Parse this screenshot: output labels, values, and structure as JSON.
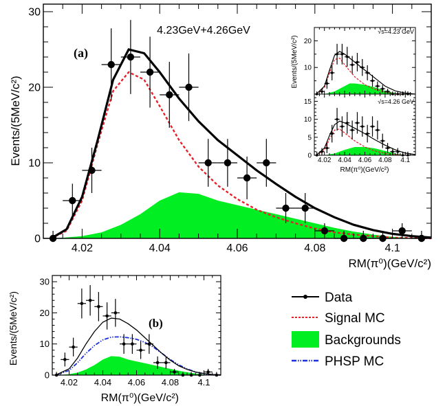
{
  "colors": {
    "data": "#000000",
    "fit": "#000000",
    "signal": "#e8202a",
    "background": "#00ee22",
    "phsp": "#1a2ed8"
  },
  "chart_data": [
    {
      "type": "scatter",
      "panel_label": "(a)",
      "title": "4.23GeV+4.26GeV",
      "xlabel": "RM(π⁰)(GeV/c²)",
      "ylabel": "Events/(5MeV/c²)",
      "xlim": [
        4.01,
        4.11
      ],
      "ylim": [
        0,
        31
      ],
      "xticks": [
        "4.02",
        "4.04",
        "4.06",
        "4.08",
        "4.1"
      ],
      "yticks": [
        "0",
        "10",
        "20",
        "30"
      ],
      "data_points": {
        "x": [
          4.0125,
          4.0175,
          4.0225,
          4.0275,
          4.0325,
          4.0375,
          4.0425,
          4.0475,
          4.0525,
          4.0575,
          4.0625,
          4.0675,
          4.0725,
          4.0775,
          4.0825,
          4.0875,
          4.0925,
          4.0975,
          4.1025,
          4.1075
        ],
        "y": [
          0,
          5,
          9,
          23,
          24,
          22,
          19,
          20,
          10,
          10,
          8,
          10,
          4,
          4,
          1,
          0,
          0,
          0,
          1,
          0
        ]
      },
      "series": [
        {
          "name": "Data",
          "kind": "points"
        },
        {
          "name": "Fit",
          "kind": "line",
          "x": [
            4.012,
            4.016,
            4.02,
            4.024,
            4.028,
            4.032,
            4.036,
            4.04,
            4.045,
            4.05,
            4.055,
            4.06,
            4.065,
            4.07,
            4.075,
            4.08,
            4.085,
            4.09,
            4.095,
            4.1,
            4.105,
            4.11
          ],
          "y": [
            0,
            1.2,
            5.5,
            13,
            21,
            25,
            24.5,
            22,
            18.5,
            15.5,
            13,
            11,
            9,
            7.2,
            5.5,
            4,
            2.8,
            1.8,
            1.1,
            0.6,
            0.3,
            0.1
          ]
        },
        {
          "name": "Signal MC",
          "kind": "dashed",
          "x": [
            4.012,
            4.016,
            4.02,
            4.024,
            4.028,
            4.032,
            4.036,
            4.04,
            4.045,
            4.05,
            4.055,
            4.06,
            4.065,
            4.07,
            4.075,
            4.08,
            4.085,
            4.09,
            4.095,
            4.1,
            4.105,
            4.11
          ],
          "y": [
            0,
            1,
            5,
            12.5,
            19.5,
            22,
            21,
            17.5,
            13,
            9.5,
            7,
            5.2,
            3.8,
            2.8,
            2,
            1.3,
            0.8,
            0.5,
            0.3,
            0.1,
            0.05,
            0
          ]
        },
        {
          "name": "Backgrounds",
          "kind": "fill",
          "x": [
            4.013,
            4.02,
            4.025,
            4.03,
            4.035,
            4.04,
            4.045,
            4.05,
            4.055,
            4.06,
            4.065,
            4.07,
            4.075,
            4.08,
            4.085,
            4.09,
            4.095,
            4.1,
            4.105
          ],
          "y": [
            0,
            0.3,
            0.8,
            1.8,
            3.2,
            5,
            6.1,
            5.9,
            5,
            4.4,
            3.8,
            3.2,
            2.6,
            2,
            1.4,
            0.9,
            0.5,
            0.2,
            0
          ]
        }
      ],
      "insets": [
        {
          "label": "√s=4.23 GeV",
          "ylabel": "Events/(5MeV/c²)",
          "xlim": [
            4.01,
            4.11
          ],
          "ylim": [
            0,
            25
          ],
          "yticks": [
            "10",
            "20"
          ],
          "data_points": {
            "x": [
              4.0125,
              4.0175,
              4.0225,
              4.0275,
              4.0325,
              4.0375,
              4.0425,
              4.0475,
              4.0525,
              4.0575,
              4.0625,
              4.0675,
              4.0725,
              4.0775,
              4.0825,
              4.0875,
              4.0925,
              4.0975,
              4.1025
            ],
            "y": [
              0,
              1,
              4,
              8,
              15,
              15,
              14,
              11,
              12,
              10,
              8,
              5,
              3,
              2,
              1,
              0,
              0,
              0,
              0
            ]
          },
          "fit": {
            "x": [
              4.012,
              4.02,
              4.025,
              4.03,
              4.035,
              4.04,
              4.05,
              4.06,
              4.07,
              4.08,
              4.09,
              4.1,
              4.11
            ],
            "y": [
              0,
              3,
              9,
              14.5,
              16,
              15,
              12,
              9,
              6,
              3,
              1.2,
              0.4,
              0
            ]
          },
          "signal": {
            "x": [
              4.012,
              4.02,
              4.025,
              4.03,
              4.035,
              4.04,
              4.05,
              4.06,
              4.07,
              4.08,
              4.09,
              4.1
            ],
            "y": [
              0,
              2.5,
              8,
              13,
              13.5,
              11,
              6.5,
              3.5,
              1.8,
              0.8,
              0.2,
              0
            ]
          },
          "background": {
            "x": [
              4.02,
              4.03,
              4.04,
              4.045,
              4.05,
              4.06,
              4.07,
              4.08,
              4.09,
              4.1
            ],
            "y": [
              0,
              1,
              3,
              4,
              4,
              3.5,
              2.5,
              1.2,
              0.4,
              0
            ]
          }
        },
        {
          "label": "√s=4.26 GeV",
          "ylabel": "Events/(5MeV/c²)",
          "xlim": [
            4.01,
            4.11
          ],
          "ylim": [
            0,
            17
          ],
          "yticks": [
            "0",
            "5",
            "10",
            "15"
          ],
          "xticks": [
            "4.02",
            "4.04",
            "4.06",
            "4.08",
            "4.1"
          ],
          "xlabel": "RM(π⁰)(GeV/c²)",
          "data_points": {
            "x": [
              4.0125,
              4.0175,
              4.0225,
              4.0275,
              4.0325,
              4.0375,
              4.0425,
              4.0475,
              4.0525,
              4.0575,
              4.0625,
              4.0675,
              4.0725,
              4.0775,
              4.0825,
              4.0875,
              4.0925,
              4.0975,
              4.1025
            ],
            "y": [
              0,
              1,
              2,
              6,
              10,
              8,
              9,
              7,
              9,
              8,
              6,
              8,
              7,
              4,
              2,
              1,
              1,
              0,
              0
            ]
          },
          "fit": {
            "x": [
              4.012,
              4.02,
              4.025,
              4.03,
              4.035,
              4.04,
              4.05,
              4.06,
              4.07,
              4.08,
              4.09,
              4.1,
              4.11
            ],
            "y": [
              0,
              2,
              5.5,
              8.5,
              9.5,
              9,
              7.5,
              6,
              4.3,
              2.8,
              1.5,
              0.6,
              0.2
            ]
          },
          "signal": {
            "x": [
              4.012,
              4.02,
              4.025,
              4.03,
              4.035,
              4.04,
              4.05,
              4.06,
              4.07,
              4.08,
              4.09,
              4.1
            ],
            "y": [
              0,
              1.5,
              4.5,
              7,
              7.3,
              6.2,
              4,
              2.3,
              1.2,
              0.5,
              0.2,
              0
            ]
          },
          "background": {
            "x": [
              4.02,
              4.03,
              4.04,
              4.05,
              4.06,
              4.07,
              4.08,
              4.09,
              4.1
            ],
            "y": [
              0,
              0.5,
              1.5,
              2.3,
              2.3,
              1.9,
              1.2,
              0.5,
              0
            ]
          }
        }
      ]
    },
    {
      "type": "scatter",
      "panel_label": "(b)",
      "xlabel": "RM(π⁰)(GeV/c²)",
      "ylabel": "Events/(5MeV/c²)",
      "xlim": [
        4.01,
        4.11
      ],
      "ylim": [
        0,
        32
      ],
      "xticks": [
        "4.02",
        "4.04",
        "4.06",
        "4.08",
        "4.1"
      ],
      "yticks": [
        "0",
        "10",
        "20",
        "30"
      ],
      "data_points": {
        "x": [
          4.0125,
          4.0175,
          4.0225,
          4.0275,
          4.0325,
          4.0375,
          4.0425,
          4.0475,
          4.0525,
          4.0575,
          4.0625,
          4.0675,
          4.0725,
          4.0775,
          4.0825,
          4.0875,
          4.0925,
          4.0975,
          4.1025,
          4.1075
        ],
        "y": [
          0,
          5,
          9,
          23,
          24,
          22,
          19,
          20,
          10,
          10,
          8,
          10,
          4,
          4,
          1,
          0,
          0,
          0,
          1,
          0
        ]
      },
      "series": [
        {
          "name": "Data",
          "kind": "points"
        },
        {
          "name": "Fit",
          "kind": "line",
          "x": [
            4.012,
            4.02,
            4.025,
            4.03,
            4.035,
            4.04,
            4.045,
            4.05,
            4.055,
            4.06,
            4.065,
            4.07,
            4.075,
            4.08,
            4.085,
            4.09,
            4.095,
            4.1,
            4.105,
            4.11
          ],
          "y": [
            0,
            2,
            5.5,
            10,
            14,
            17,
            18.3,
            18,
            16.5,
            14.5,
            12,
            9.5,
            7,
            4.8,
            3,
            1.8,
            1,
            0.5,
            0.2,
            0.1
          ]
        },
        {
          "name": "PHSP MC",
          "kind": "dashdot",
          "x": [
            4.012,
            4.02,
            4.025,
            4.03,
            4.035,
            4.04,
            4.045,
            4.05,
            4.055,
            4.06,
            4.065,
            4.07,
            4.075,
            4.08,
            4.085,
            4.09,
            4.095,
            4.1,
            4.105,
            4.11
          ],
          "y": [
            0,
            1.5,
            4,
            7,
            9.5,
            11.3,
            12.2,
            12.3,
            12,
            11.5,
            10.5,
            9,
            7,
            5,
            3.3,
            2,
            1,
            0.4,
            0.1,
            0
          ]
        },
        {
          "name": "Backgrounds",
          "kind": "fill",
          "x": [
            4.013,
            4.02,
            4.025,
            4.03,
            4.035,
            4.04,
            4.045,
            4.05,
            4.055,
            4.06,
            4.065,
            4.07,
            4.075,
            4.08,
            4.085,
            4.09,
            4.095,
            4.1,
            4.105
          ],
          "y": [
            0,
            0.3,
            0.8,
            1.8,
            3.2,
            5,
            6.1,
            5.9,
            5,
            4.4,
            3.8,
            3.2,
            2.6,
            2,
            1.4,
            0.9,
            0.5,
            0.2,
            0
          ]
        }
      ]
    }
  ],
  "legend": {
    "items": [
      {
        "label": "Data",
        "kind": "points"
      },
      {
        "label": "Signal MC",
        "kind": "dashed"
      },
      {
        "label": "Backgrounds",
        "kind": "fill"
      },
      {
        "label": "PHSP MC",
        "kind": "dashdot"
      }
    ]
  }
}
